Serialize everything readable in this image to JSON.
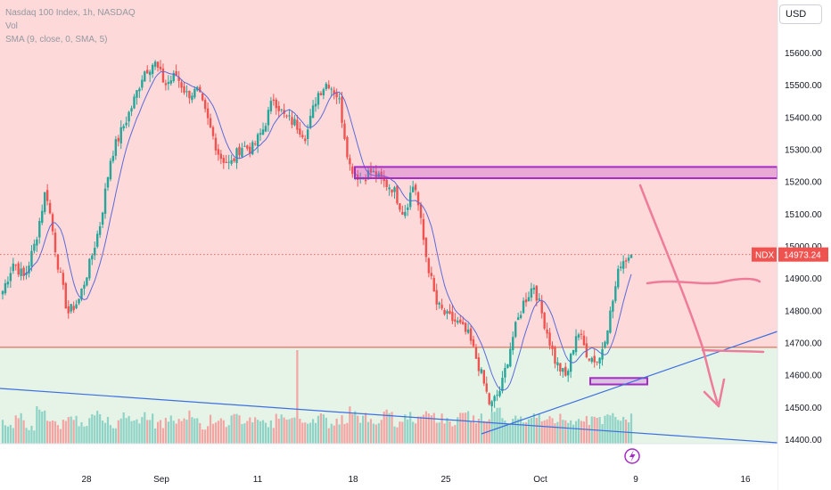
{
  "legend": {
    "title": "Nasdaq 100 Index, 1h, NASDAQ",
    "vol": "Vol",
    "sma": "SMA (9, close, 0, SMA, 5)"
  },
  "currency": "USD",
  "price_tag": {
    "symbol": "NDX",
    "value": "14973.24"
  },
  "icons": {
    "flash": "lightning-bolt-icon"
  },
  "colors": {
    "up": "#26a69a",
    "down": "#ef5350",
    "upper_zone": "#fdd9d9",
    "lower_zone": "#e6f4e8",
    "sma": "#5b6bd8",
    "trendline": "#3d6fe0",
    "box": "#a32cc4",
    "drawing": "#ee7b9a",
    "hline": "#e2563a"
  },
  "chart_data": {
    "type": "candlestick",
    "symbol": "NDX",
    "interval": "1h",
    "ylim": [
      14330,
      15680
    ],
    "yticks": [
      15600,
      15500,
      15400,
      15300,
      15200,
      15100,
      15000,
      14900,
      14800,
      14700,
      14600,
      14500,
      14400
    ],
    "ytick_labels": [
      "15600.00",
      "15500.00",
      "15400.00",
      "15300.00",
      "15200.00",
      "15100.00",
      "15000.00",
      "14900.00",
      "14800.00",
      "14700.00",
      "14600.00",
      "14500.00",
      "14400.00"
    ],
    "xticks": [
      "28",
      "Sep",
      "11",
      "18",
      "25",
      "Oct",
      "9",
      "16"
    ],
    "last_price": 14973.24,
    "key_level": 14685,
    "resistance_zone": [
      15210,
      15245
    ],
    "support_box": [
      14570,
      14590
    ],
    "sma_period": 9,
    "close_path": [
      14860,
      14950,
      14900,
      15010,
      15180,
      14960,
      14790,
      14830,
      14940,
      15070,
      15280,
      15360,
      15440,
      15540,
      15570,
      15500,
      15530,
      15470,
      15480,
      15380,
      15280,
      15250,
      15310,
      15300,
      15360,
      15460,
      15400,
      15380,
      15340,
      15470,
      15510,
      15460,
      15250,
      15210,
      15230,
      15200,
      15180,
      15100,
      15200,
      14980,
      14820,
      14780,
      14760,
      14720,
      14620,
      14500,
      14560,
      14710,
      14820,
      14880,
      14760,
      14640,
      14590,
      14740,
      14660,
      14640,
      14780,
      14950,
      14973
    ],
    "volume_path": [
      30,
      45,
      25,
      60,
      35,
      28,
      42,
      33,
      50,
      38,
      31,
      44,
      36,
      48,
      29,
      40,
      34,
      46,
      27,
      39,
      32,
      43,
      37,
      41,
      30,
      47,
      35,
      33,
      40,
      45,
      31,
      38,
      55,
      42,
      36,
      48,
      30,
      44,
      39,
      50,
      41,
      35,
      46,
      38,
      43,
      52,
      37,
      40,
      33,
      45,
      36,
      42,
      38,
      44,
      35,
      40,
      47,
      41,
      52
    ]
  }
}
